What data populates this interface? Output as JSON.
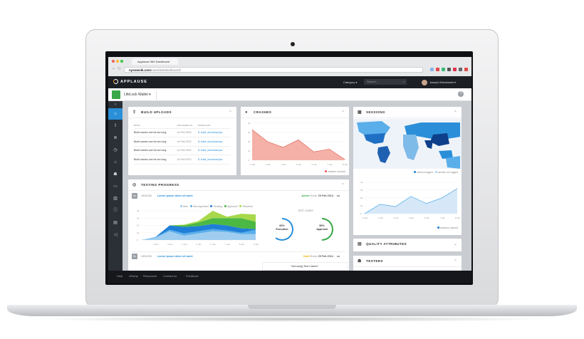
{
  "browser": {
    "tab_title": "Applause 360 Dashboard",
    "url_host": "nysownik.com",
    "url_path": "/uewt/360dashboard/"
  },
  "nav": {
    "logo": "APPLAUSE",
    "category": "Category",
    "search_placeholder": "Search...",
    "user": "Joseph Wisniewski"
  },
  "app": {
    "name": "LifeLock Wallet",
    "help": "?"
  },
  "sidebar": {
    "items": [
      "home",
      "upload",
      "list",
      "clock",
      "building",
      "users",
      "folder",
      "chart",
      "info",
      "table",
      "megaphone"
    ],
    "active": 0
  },
  "footer": {
    "links": [
      "Help",
      "uRamp",
      "Resources",
      "Contact us",
      "Feedback"
    ]
  },
  "build_uploads": {
    "title": "BUILD UPLOADS",
    "columns": [
      "BUILD",
      "UPLOADED ON",
      "DOWNLOAD"
    ],
    "rows": [
      [
        "Build names can be too long",
        "14 Feb 2012",
        "build_download.ipa"
      ],
      [
        "Build names can be too long",
        "14 Feb 2012",
        "build_download.ipa"
      ],
      [
        "Build names can be too long",
        "14 Feb 2012",
        "build_download.ipa"
      ],
      [
        "Build names can be too long",
        "14 Feb 2012",
        "build_download.ipa"
      ]
    ]
  },
  "crashes": {
    "title": "CRASHES",
    "legend": "crashes occured",
    "color": "#f08e82",
    "chart_data": {
      "type": "area",
      "x": [
        "2 Jan",
        "3 Jan",
        "4 Jan",
        "5 Jan",
        "6 Jan",
        "7 Jan",
        "8 Jan"
      ],
      "values": [
        33,
        20,
        14,
        22,
        9,
        12,
        1
      ],
      "ylim": [
        0,
        40
      ],
      "yticks": [
        "0",
        "10",
        "20",
        "30",
        "40"
      ]
    }
  },
  "sessions": {
    "title": "SESSIONS",
    "map_legend": [
      "session logged",
      "session not logged"
    ],
    "legend": "sessions opened",
    "color": "#7fb7e6",
    "chart_data": {
      "type": "area",
      "x": [
        "2 Jan",
        "3 Jan",
        "4 Jan",
        "5 Jan",
        "6 Jan",
        "7 Jan",
        "8 Jan"
      ],
      "values": [
        0,
        12,
        9,
        22,
        13,
        20,
        32
      ],
      "ylim": [
        0,
        40
      ],
      "yticks": [
        "0",
        "10",
        "20",
        "30",
        "40"
      ]
    }
  },
  "quality": {
    "title": "QUALITY ATTRIBUTES"
  },
  "testers": {
    "title": "TESTERS"
  },
  "testing": {
    "title": "TESTING PROGRESS",
    "cycles": [
      {
        "badge": "Ds",
        "id": "4324235",
        "name": "Lorem ipsum dolor sit amet",
        "status": "Active",
        "status_color": "#3aa846",
        "ends_label": "Ends:",
        "ends": "29 Feb 2014",
        "test_cases_label": "TEST CASES",
        "rings": [
          {
            "pct": 60,
            "label": "60%",
            "sub": "Execution",
            "color": "#2a8fd8"
          },
          {
            "pct": 50,
            "label": "50%",
            "sub": "Approval",
            "color": "#3aa846"
          }
        ]
      },
      {
        "badge": "Sc",
        "id": "4324235",
        "name": "Lorem ipsum dolor sit amet",
        "status": "Draft",
        "status_color": "#f5b400",
        "ends_label": "Ends:",
        "ends": "29 Feb 2014",
        "note": "Not using Test Cases?"
      }
    ],
    "chart_data": {
      "type": "area",
      "stacked": true,
      "x": [
        "",
        "2 Jan",
        "3 Jan",
        "4 Jan",
        "5 Jan",
        "6 Jan",
        "7 Jan",
        "8 Jan",
        "9 Jan"
      ],
      "ylim": [
        0,
        40
      ],
      "yticks": [
        "0",
        "10",
        "20",
        "30",
        "40"
      ],
      "series": [
        {
          "name": "New",
          "color": "#9fcdf0",
          "values": [
            0,
            3,
            12,
            6,
            9,
            12,
            11,
            8,
            8
          ]
        },
        {
          "name": "Info requested",
          "color": "#5aaeea",
          "values": [
            0,
            1,
            2,
            3,
            3,
            3,
            2,
            2,
            6
          ]
        },
        {
          "name": "Pending",
          "color": "#1f7fd6",
          "values": [
            0,
            0,
            6,
            9,
            7,
            7,
            7,
            6,
            1
          ]
        },
        {
          "name": "Approved",
          "color": "#4cb844",
          "values": [
            0,
            0,
            0,
            2,
            5,
            8,
            10,
            14,
            10
          ]
        },
        {
          "name": "Resolved",
          "color": "#a7d84a",
          "values": [
            0,
            0,
            0,
            1,
            2,
            10,
            2,
            6,
            10
          ]
        }
      ]
    }
  }
}
